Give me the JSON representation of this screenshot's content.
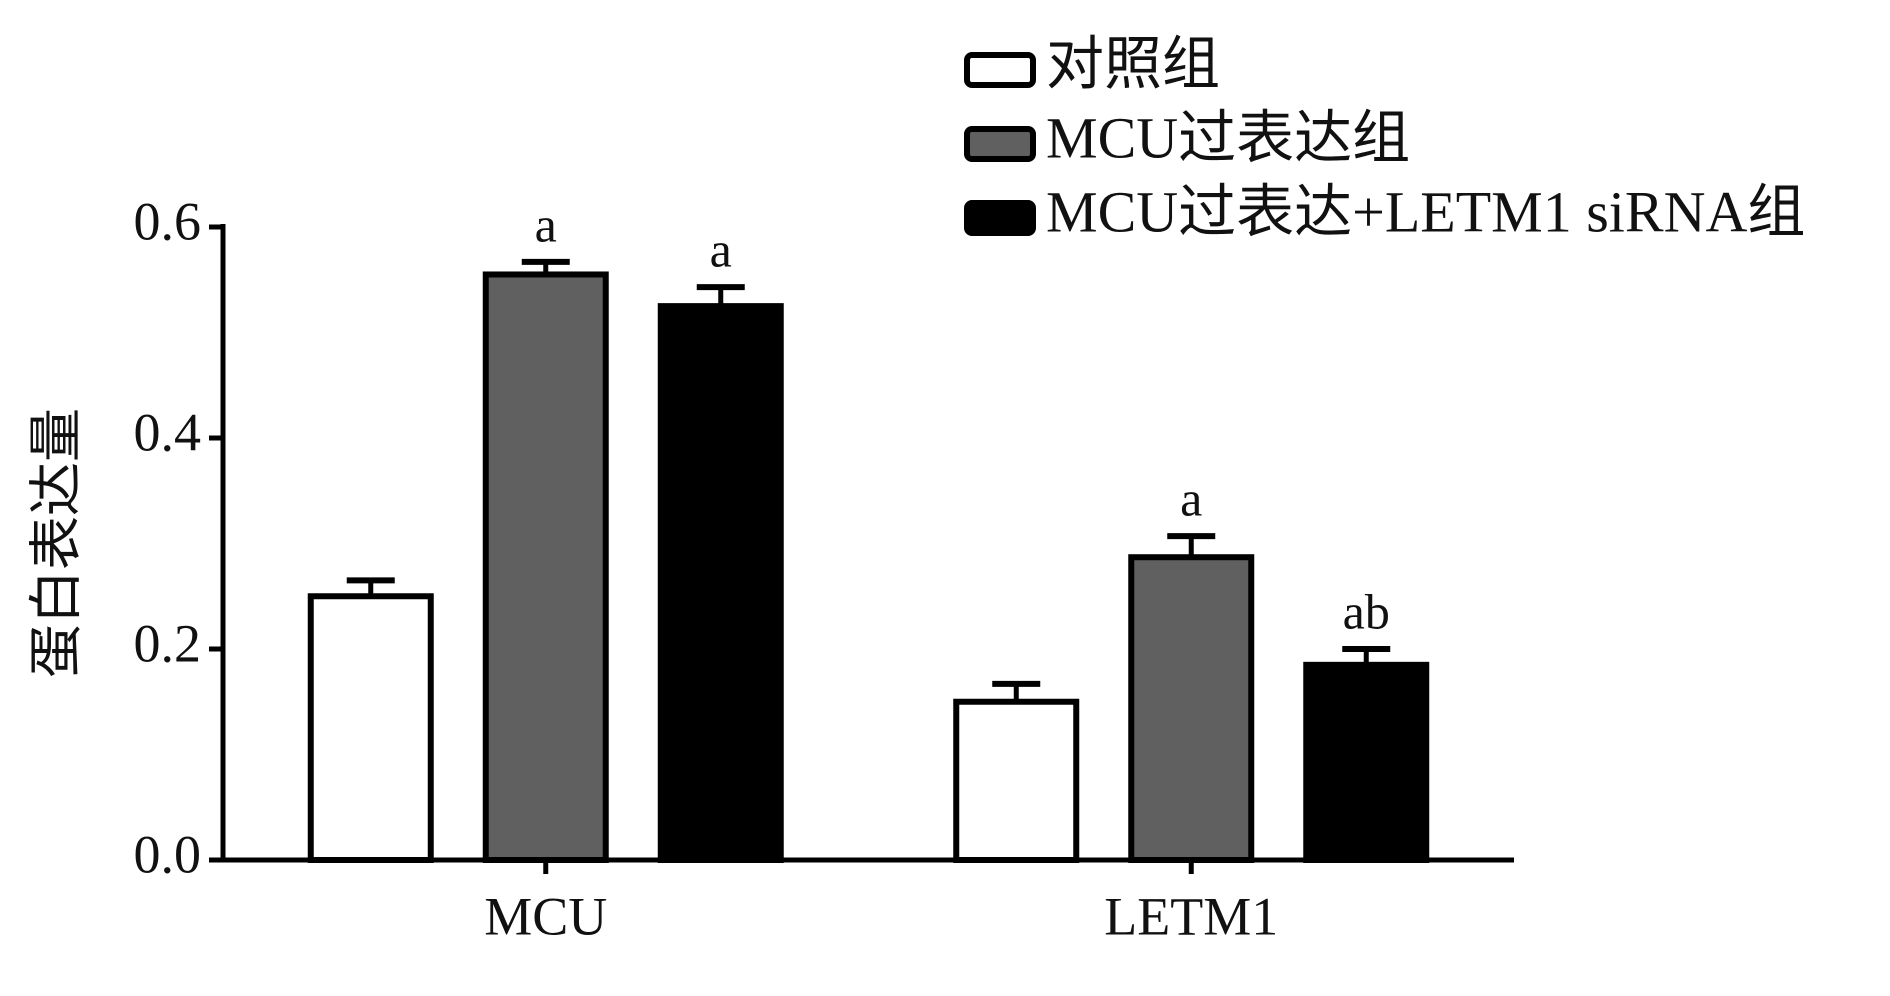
{
  "chart_data": {
    "type": "bar",
    "y_label": "蛋白表达量",
    "categories": [
      "MCU",
      "LETM1"
    ],
    "series": [
      {
        "name": "对照组",
        "color": "#ffffff",
        "values": [
          0.25,
          0.15
        ],
        "errors": [
          0.015,
          0.017
        ],
        "annotations": [
          null,
          null
        ]
      },
      {
        "name": "MCU过表达组",
        "color": "#606060",
        "values": [
          0.555,
          0.287
        ],
        "errors": [
          0.012,
          0.02
        ],
        "annotations": [
          "a",
          "a"
        ]
      },
      {
        "name": "MCU过表达+LETM1 siRNA组",
        "color": "#000000",
        "values": [
          0.525,
          0.185
        ],
        "errors": [
          0.018,
          0.015
        ],
        "annotations": [
          "a",
          "ab"
        ]
      }
    ],
    "ylim": [
      0,
      0.6
    ],
    "yticks": [
      {
        "value": 0,
        "label": "0.0"
      },
      0.2,
      0.4,
      0.6
    ],
    "legend": "top-right"
  }
}
